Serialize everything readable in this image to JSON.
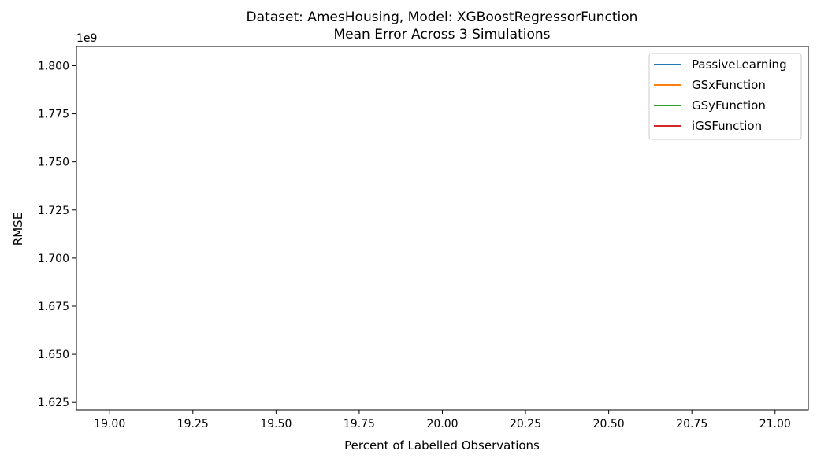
{
  "chart_data": {
    "type": "line",
    "title_lines": [
      "Dataset: AmesHousing, Model: XGBoostRegressorFunction",
      "Mean Error Across 3 Simulations"
    ],
    "xlabel": "Percent of Labelled Observations",
    "ylabel": "RMSE",
    "y_offset_label": "1e9",
    "xlim": [
      18.9,
      21.1
    ],
    "ylim": [
      1.621,
      1.81
    ],
    "x_ticks": [
      19.0,
      19.25,
      19.5,
      19.75,
      20.0,
      20.25,
      20.5,
      20.75,
      21.0
    ],
    "x_tick_labels": [
      "19.00",
      "19.25",
      "19.50",
      "19.75",
      "20.00",
      "20.25",
      "20.50",
      "20.75",
      "21.00"
    ],
    "y_ticks": [
      1.625,
      1.65,
      1.675,
      1.7,
      1.725,
      1.75,
      1.775,
      1.8
    ],
    "y_tick_labels": [
      "1.625",
      "1.650",
      "1.675",
      "1.700",
      "1.725",
      "1.750",
      "1.775",
      "1.800"
    ],
    "grid": false,
    "legend_position": "top-right",
    "series": [
      {
        "name": "PassiveLearning",
        "color": "#1f77b4",
        "x": [],
        "y": []
      },
      {
        "name": "GSxFunction",
        "color": "#ff7f0e",
        "x": [],
        "y": []
      },
      {
        "name": "GSyFunction",
        "color": "#2ca02c",
        "x": [],
        "y": []
      },
      {
        "name": "iGSFunction",
        "color": "#d62728",
        "x": [],
        "y": []
      }
    ]
  }
}
